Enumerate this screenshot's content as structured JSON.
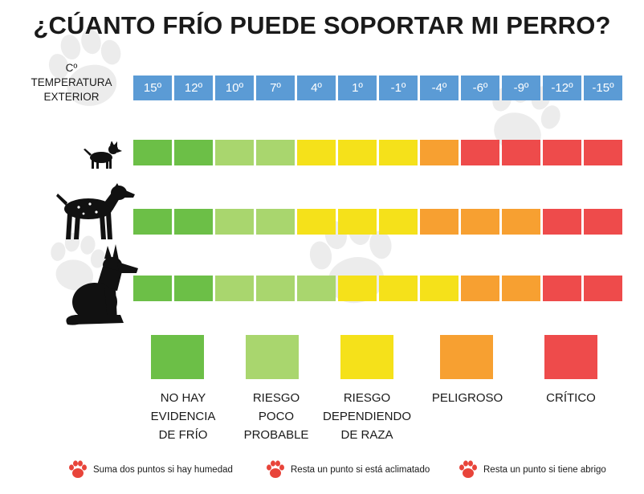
{
  "title": "¿CÚANTO FRÍO PUEDE SOPORTAR MI PERRO?",
  "temperature_label": [
    "Cº",
    "TEMPERATURA",
    "EXTERIOR"
  ],
  "temperatures": [
    "15º",
    "12º",
    "10º",
    "7º",
    "4º",
    "1º",
    "-1º",
    "-4º",
    "-6º",
    "-9º",
    "-12º",
    "-15º"
  ],
  "colors": {
    "no_evidence": "#6cbf47",
    "low_risk": "#a9d66e",
    "breed_dependent": "#f5e11a",
    "dangerous": "#f7a031",
    "critical": "#ee4b4b",
    "header_blue": "#5b9bd5"
  },
  "rows": [
    {
      "dog": "small-dog-icon",
      "levels": [
        "no_evidence",
        "no_evidence",
        "low_risk",
        "low_risk",
        "breed_dependent",
        "breed_dependent",
        "breed_dependent",
        "dangerous",
        "critical",
        "critical",
        "critical",
        "critical"
      ]
    },
    {
      "dog": "medium-dog-icon",
      "levels": [
        "no_evidence",
        "no_evidence",
        "low_risk",
        "low_risk",
        "breed_dependent",
        "breed_dependent",
        "breed_dependent",
        "dangerous",
        "dangerous",
        "dangerous",
        "critical",
        "critical"
      ]
    },
    {
      "dog": "large-dog-icon",
      "levels": [
        "no_evidence",
        "no_evidence",
        "low_risk",
        "low_risk",
        "low_risk",
        "breed_dependent",
        "breed_dependent",
        "breed_dependent",
        "dangerous",
        "dangerous",
        "critical",
        "critical"
      ]
    }
  ],
  "legend": [
    {
      "key": "no_evidence",
      "lines": [
        "NO HAY",
        "EVIDENCIA",
        "DE FRÍO"
      ]
    },
    {
      "key": "low_risk",
      "lines": [
        "RIESGO",
        "POCO",
        "PROBABLE"
      ]
    },
    {
      "key": "breed_dependent",
      "lines": [
        "RIESGO",
        "DEPENDIENDO",
        "DE RAZA"
      ]
    },
    {
      "key": "dangerous",
      "lines": [
        "PELIGROSO"
      ]
    },
    {
      "key": "critical",
      "lines": [
        "CRÍTICO"
      ]
    }
  ],
  "notes": [
    "Suma dos puntos si hay humedad",
    "Resta un punto si está aclimatado",
    "Resta un punto si tiene abrigo"
  ]
}
